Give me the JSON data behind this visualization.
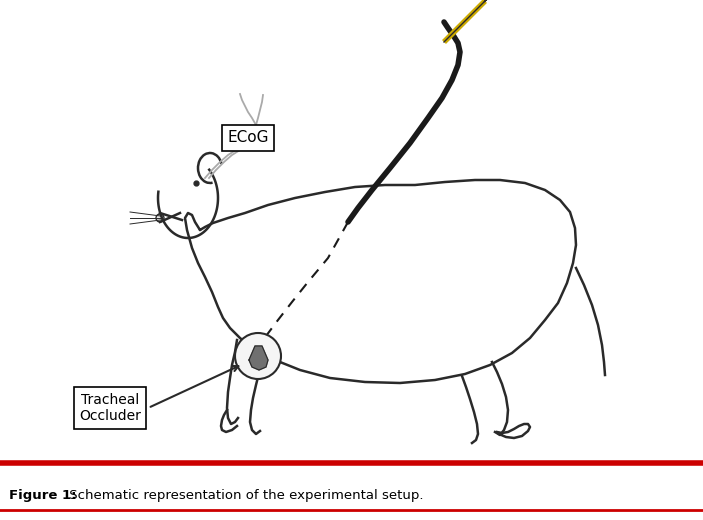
{
  "caption_bold": "Figure 1:",
  "caption_regular": " Schematic representation of the experimental setup.",
  "ecog_label": "ECoG",
  "occluder_label": "Tracheal\nOccluder",
  "bg_color": "#ffffff",
  "line_color": "#2a2a2a",
  "syringe_body_color": "#e8f4f8",
  "syringe_plunger_color": "#c8a0c8",
  "syringe_needle_color": "#ccaa00",
  "syringe_outline_color": "#2a2a2a",
  "dashed_line_color": "#1a1a1a",
  "cable_color": "#1a1a1a",
  "probe_wire_color": "#aaaaaa",
  "red_line_color": "#cc0000",
  "caption_bold_color": "#000000"
}
